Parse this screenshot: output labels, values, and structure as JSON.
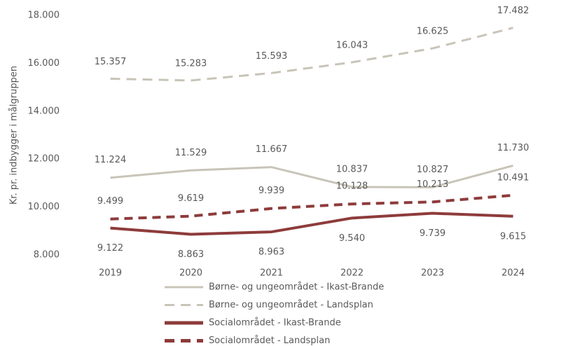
{
  "chart_data": {
    "type": "line",
    "y_label": "Kr. pr. indbygger i målgruppen",
    "categories": [
      "2019",
      "2020",
      "2021",
      "2022",
      "2023",
      "2024"
    ],
    "series": [
      {
        "name": "Børne- og ungeområdet - Ikast-Brande",
        "color": "#c8c4b8",
        "dashed": false,
        "values": [
          11224,
          11529,
          11667,
          10837,
          10827,
          11730
        ],
        "value_labels": [
          "11.224",
          "11.529",
          "11.667",
          "10.837",
          "10.827",
          "11.730"
        ]
      },
      {
        "name": "Børne- og ungeområdet - Landsplan",
        "color": "#c8c4b8",
        "dashed": true,
        "values": [
          15357,
          15283,
          15593,
          16043,
          16625,
          17482
        ],
        "value_labels": [
          "15.357",
          "15.283",
          "15.593",
          "16.043",
          "16.625",
          "17.482"
        ]
      },
      {
        "name": "Socialområdet - Ikast-Brande",
        "color": "#8e3b3b",
        "dashed": false,
        "values": [
          9122,
          8863,
          8963,
          9540,
          9739,
          9615
        ],
        "value_labels": [
          "9.122",
          "8.863",
          "8.963",
          "9.540",
          "9.739",
          "9.615"
        ]
      },
      {
        "name": "Socialområdet - Landsplan",
        "color": "#8e3b3b",
        "dashed": true,
        "values": [
          9499,
          9619,
          9939,
          10128,
          10213,
          10491
        ],
        "value_labels": [
          "9.499",
          "9.619",
          "9.939",
          "10.128",
          "10.213",
          "10.491"
        ]
      }
    ],
    "ylim": [
      8000,
      18000
    ],
    "yticks": [
      {
        "value": 8000,
        "label": "8.000"
      },
      {
        "value": 10000,
        "label": "10.000"
      },
      {
        "value": 12000,
        "label": "12.000"
      },
      {
        "value": 14000,
        "label": "14.000"
      },
      {
        "value": 16000,
        "label": "16.000"
      },
      {
        "value": 18000,
        "label": "18.000"
      }
    ],
    "grid": false
  }
}
